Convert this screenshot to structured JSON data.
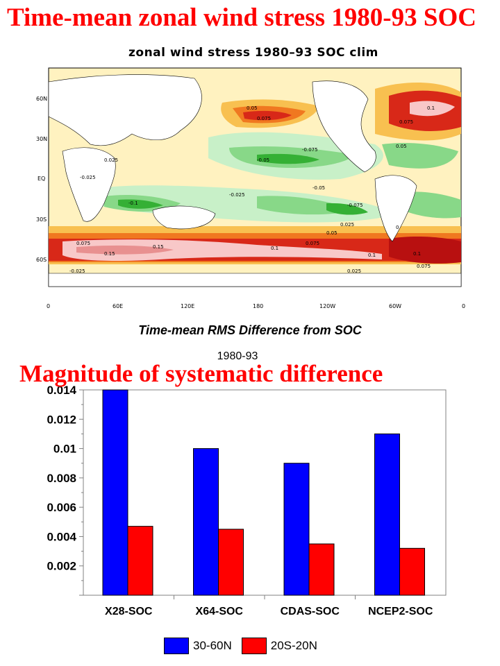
{
  "slide_title": "Time-mean zonal wind stress 1980-93 SOC",
  "map": {
    "title": "zonal wind stress 1980–93 SOC clim",
    "lat_labels": [
      "60N",
      "30N",
      "EQ",
      "30S",
      "60S"
    ],
    "lon_labels": [
      "0",
      "60E",
      "120E",
      "180",
      "120W",
      "60W",
      "0"
    ],
    "contour_labels": [
      "0.05",
      "0.075",
      "0.1",
      "0.025",
      "-0.025",
      "-0.05",
      "-0.075",
      "-0.1",
      "0.15",
      "0",
      "0.05",
      "0.075",
      "0.1",
      "0.025",
      "-0.05",
      "-0.025",
      "-0.075",
      "0.075",
      "0.1",
      "0.15",
      "0.1",
      "0.075",
      "0.025",
      "-0.025",
      "0.05",
      "0.075"
    ],
    "colors": {
      "strong_negative": "#35b035",
      "negative": "#88d888",
      "weak_negative": "#c8f0c8",
      "weak_positive": "#fff2c0",
      "positive": "#f8c050",
      "moderate_positive": "#f07820",
      "strong_positive": "#d82818",
      "very_strong_positive": "#f8c8c8",
      "land": "#ffffff"
    }
  },
  "chart_data": {
    "type": "bar",
    "title": "Time-mean RMS Difference from SOC",
    "subtitle": "1980-93",
    "overlay_title": "Magnitude of systematic difference",
    "categories": [
      "X28-SOC",
      "X64-SOC",
      "CDAS-SOC",
      "NCEP2-SOC"
    ],
    "series": [
      {
        "name": "30-60N",
        "color": "#0000ff",
        "values": [
          0.0141,
          0.01,
          0.009,
          0.011
        ]
      },
      {
        "name": "20S-20N",
        "color": "#ff0000",
        "values": [
          0.0047,
          0.0045,
          0.0035,
          0.0032
        ]
      }
    ],
    "ylim": [
      0,
      0.014
    ],
    "y_ticks": [
      "0.002",
      "0.004",
      "0.006",
      "0.008",
      "0.01",
      "0.012",
      "0.014"
    ],
    "grid": false,
    "legend": "bottom"
  }
}
